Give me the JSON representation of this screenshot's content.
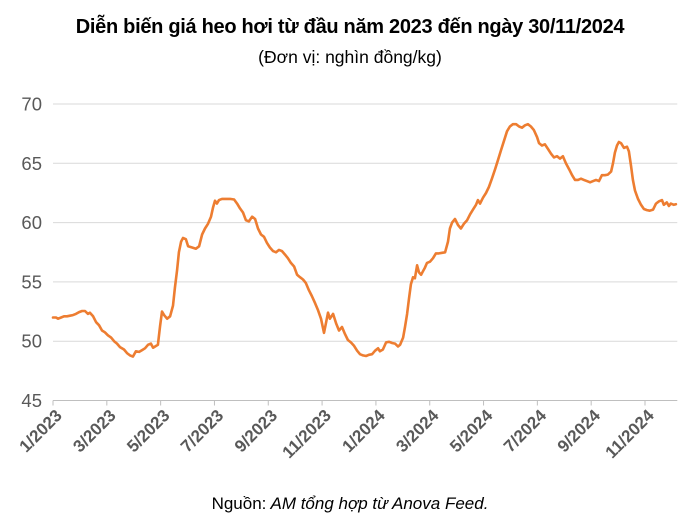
{
  "page": {
    "title": "Diễn biến giá heo hơi từ đầu năm 2023 đến ngày 30/11/2024",
    "subtitle": "(Đơn vị: nghìn đồng/kg)",
    "source_prefix": "Nguồn:",
    "source_text": " AM tổng hợp từ Anova Feed."
  },
  "colors": {
    "line": "#ED7D31",
    "grid": "#D9D9D9",
    "axis": "#BFBFBF",
    "tick_label": "#595959",
    "title_text": "#000000"
  },
  "chart_data": {
    "type": "line",
    "title": "Diễn biến giá heo hơi từ đầu năm 2023 đến ngày 30/11/2024",
    "subtitle": "(Đơn vị: nghìn đồng/kg)",
    "xlabel": "",
    "ylabel": "nghìn đồng/kg",
    "ylim": [
      45,
      70
    ],
    "xlim_months": [
      0,
      23.2
    ],
    "grid": "horizontal",
    "legend": "none",
    "y_ticks": [
      45,
      50,
      55,
      60,
      65,
      70
    ],
    "x_tick_labels": [
      "1/2023",
      "3/2023",
      "5/2023",
      "7/2023",
      "9/2023",
      "11/2023",
      "1/2024",
      "3/2024",
      "5/2024",
      "7/2024",
      "9/2024",
      "11/2024"
    ],
    "x_tick_positions_months": [
      0,
      2,
      4,
      6,
      8,
      10,
      12,
      14,
      16,
      18,
      20,
      22
    ],
    "series": [
      {
        "name": "Giá heo hơi (nghìn đồng/kg)",
        "color": "#ED7D31",
        "points": [
          [
            0,
            52
          ],
          [
            0.11,
            52
          ],
          [
            0.19,
            51.9
          ],
          [
            0.3,
            52
          ],
          [
            0.41,
            52.1
          ],
          [
            0.52,
            52.1
          ],
          [
            0.63,
            52.15
          ],
          [
            0.74,
            52.2
          ],
          [
            0.85,
            52.3
          ],
          [
            0.97,
            52.45
          ],
          [
            1.08,
            52.55
          ],
          [
            1.19,
            52.55
          ],
          [
            1.3,
            52.3
          ],
          [
            1.37,
            52.4
          ],
          [
            1.49,
            52.1
          ],
          [
            1.6,
            51.6
          ],
          [
            1.71,
            51.35
          ],
          [
            1.82,
            50.9
          ],
          [
            1.93,
            50.75
          ],
          [
            2.04,
            50.5
          ],
          [
            2.16,
            50.3
          ],
          [
            2.27,
            50
          ],
          [
            2.38,
            49.8
          ],
          [
            2.49,
            49.5
          ],
          [
            2.64,
            49.3
          ],
          [
            2.75,
            49
          ],
          [
            2.86,
            48.8
          ],
          [
            2.97,
            48.7
          ],
          [
            3.08,
            49.15
          ],
          [
            3.2,
            49.1
          ],
          [
            3.31,
            49.25
          ],
          [
            3.42,
            49.4
          ],
          [
            3.53,
            49.7
          ],
          [
            3.64,
            49.8
          ],
          [
            3.72,
            49.45
          ],
          [
            3.83,
            49.6
          ],
          [
            3.9,
            49.7
          ],
          [
            3.98,
            51.3
          ],
          [
            4.05,
            52.5
          ],
          [
            4.13,
            52.2
          ],
          [
            4.24,
            51.9
          ],
          [
            4.35,
            52.1
          ],
          [
            4.46,
            53
          ],
          [
            4.53,
            54.5
          ],
          [
            4.61,
            56
          ],
          [
            4.68,
            57.5
          ],
          [
            4.76,
            58.4
          ],
          [
            4.83,
            58.7
          ],
          [
            4.94,
            58.6
          ],
          [
            5.02,
            58
          ],
          [
            5.17,
            57.9
          ],
          [
            5.31,
            57.8
          ],
          [
            5.43,
            58
          ],
          [
            5.54,
            59
          ],
          [
            5.65,
            59.5
          ],
          [
            5.76,
            59.9
          ],
          [
            5.87,
            60.5
          ],
          [
            5.95,
            61.3
          ],
          [
            6.02,
            61.85
          ],
          [
            6.09,
            61.6
          ],
          [
            6.17,
            61.9
          ],
          [
            6.28,
            62
          ],
          [
            6.43,
            62
          ],
          [
            6.58,
            62
          ],
          [
            6.73,
            61.95
          ],
          [
            6.84,
            61.6
          ],
          [
            6.95,
            61.2
          ],
          [
            7.06,
            60.85
          ],
          [
            7.17,
            60.2
          ],
          [
            7.28,
            60.1
          ],
          [
            7.4,
            60.5
          ],
          [
            7.51,
            60.3
          ],
          [
            7.62,
            59.5
          ],
          [
            7.73,
            59
          ],
          [
            7.84,
            58.8
          ],
          [
            7.95,
            58.3
          ],
          [
            8.06,
            57.9
          ],
          [
            8.18,
            57.6
          ],
          [
            8.29,
            57.5
          ],
          [
            8.4,
            57.7
          ],
          [
            8.51,
            57.6
          ],
          [
            8.62,
            57.3
          ],
          [
            8.73,
            57
          ],
          [
            8.84,
            56.6
          ],
          [
            8.96,
            56.3
          ],
          [
            9.07,
            55.6
          ],
          [
            9.18,
            55.4
          ],
          [
            9.29,
            55.2
          ],
          [
            9.4,
            54.9
          ],
          [
            9.51,
            54.3
          ],
          [
            9.62,
            53.8
          ],
          [
            9.74,
            53.2
          ],
          [
            9.85,
            52.6
          ],
          [
            9.96,
            51.9
          ],
          [
            10.07,
            50.7
          ],
          [
            10.14,
            51.5
          ],
          [
            10.22,
            52.4
          ],
          [
            10.29,
            51.9
          ],
          [
            10.41,
            52.3
          ],
          [
            10.52,
            51.5
          ],
          [
            10.63,
            50.9
          ],
          [
            10.74,
            51.2
          ],
          [
            10.85,
            50.6
          ],
          [
            10.96,
            50.1
          ],
          [
            11.07,
            49.9
          ],
          [
            11.19,
            49.6
          ],
          [
            11.3,
            49.2
          ],
          [
            11.41,
            48.9
          ],
          [
            11.52,
            48.8
          ],
          [
            11.63,
            48.75
          ],
          [
            11.74,
            48.85
          ],
          [
            11.86,
            48.9
          ],
          [
            11.97,
            49.2
          ],
          [
            12.08,
            49.4
          ],
          [
            12.15,
            49.15
          ],
          [
            12.26,
            49.3
          ],
          [
            12.38,
            49.9
          ],
          [
            12.49,
            49.95
          ],
          [
            12.6,
            49.85
          ],
          [
            12.71,
            49.8
          ],
          [
            12.82,
            49.55
          ],
          [
            12.9,
            49.7
          ],
          [
            13.01,
            50.3
          ],
          [
            13.08,
            51.2
          ],
          [
            13.16,
            52.3
          ],
          [
            13.23,
            53.6
          ],
          [
            13.3,
            54.8
          ],
          [
            13.38,
            55.4
          ],
          [
            13.45,
            55.3
          ],
          [
            13.53,
            56.4
          ],
          [
            13.6,
            55.8
          ],
          [
            13.68,
            55.6
          ],
          [
            13.75,
            55.9
          ],
          [
            13.82,
            56.2
          ],
          [
            13.9,
            56.6
          ],
          [
            14.01,
            56.7
          ],
          [
            14.12,
            57
          ],
          [
            14.23,
            57.4
          ],
          [
            14.34,
            57.4
          ],
          [
            14.46,
            57.45
          ],
          [
            14.57,
            57.5
          ],
          [
            14.68,
            58.4
          ],
          [
            14.75,
            59.5
          ],
          [
            14.83,
            60
          ],
          [
            14.94,
            60.3
          ],
          [
            15.05,
            59.8
          ],
          [
            15.16,
            59.5
          ],
          [
            15.27,
            59.9
          ],
          [
            15.39,
            60.2
          ],
          [
            15.5,
            60.7
          ],
          [
            15.61,
            61.1
          ],
          [
            15.72,
            61.5
          ],
          [
            15.79,
            61.9
          ],
          [
            15.87,
            61.6
          ],
          [
            15.98,
            62.1
          ],
          [
            16.09,
            62.5
          ],
          [
            16.2,
            63
          ],
          [
            16.31,
            63.7
          ],
          [
            16.43,
            64.5
          ],
          [
            16.54,
            65.3
          ],
          [
            16.65,
            66.1
          ],
          [
            16.76,
            66.9
          ],
          [
            16.87,
            67.7
          ],
          [
            16.98,
            68.1
          ],
          [
            17.09,
            68.3
          ],
          [
            17.21,
            68.3
          ],
          [
            17.32,
            68.1
          ],
          [
            17.43,
            68
          ],
          [
            17.54,
            68.2
          ],
          [
            17.65,
            68.3
          ],
          [
            17.76,
            68.1
          ],
          [
            17.87,
            67.8
          ],
          [
            17.99,
            67.2
          ],
          [
            18.06,
            66.7
          ],
          [
            18.17,
            66.5
          ],
          [
            18.28,
            66.6
          ],
          [
            18.4,
            66.2
          ],
          [
            18.51,
            65.8
          ],
          [
            18.62,
            65.5
          ],
          [
            18.73,
            65.6
          ],
          [
            18.84,
            65.4
          ],
          [
            18.95,
            65.6
          ],
          [
            19.06,
            65
          ],
          [
            19.18,
            64.5
          ],
          [
            19.29,
            64
          ],
          [
            19.4,
            63.6
          ],
          [
            19.51,
            63.6
          ],
          [
            19.62,
            63.7
          ],
          [
            19.73,
            63.6
          ],
          [
            19.84,
            63.5
          ],
          [
            19.96,
            63.4
          ],
          [
            20.07,
            63.5
          ],
          [
            20.18,
            63.6
          ],
          [
            20.29,
            63.5
          ],
          [
            20.4,
            64
          ],
          [
            20.51,
            64
          ],
          [
            20.62,
            64.05
          ],
          [
            20.74,
            64.3
          ],
          [
            20.81,
            65
          ],
          [
            20.88,
            65.9
          ],
          [
            20.96,
            66.5
          ],
          [
            21.03,
            66.8
          ],
          [
            21.11,
            66.7
          ],
          [
            21.22,
            66.3
          ],
          [
            21.33,
            66.4
          ],
          [
            21.4,
            66
          ],
          [
            21.48,
            64.8
          ],
          [
            21.55,
            63.6
          ],
          [
            21.63,
            62.7
          ],
          [
            21.74,
            62
          ],
          [
            21.85,
            61.5
          ],
          [
            21.96,
            61.15
          ],
          [
            22.07,
            61.05
          ],
          [
            22.18,
            61
          ],
          [
            22.3,
            61.1
          ],
          [
            22.41,
            61.6
          ],
          [
            22.52,
            61.8
          ],
          [
            22.63,
            61.9
          ],
          [
            22.7,
            61.5
          ],
          [
            22.81,
            61.7
          ],
          [
            22.89,
            61.4
          ],
          [
            22.96,
            61.6
          ],
          [
            23.07,
            61.5
          ],
          [
            23.15,
            61.55
          ]
        ]
      }
    ]
  }
}
